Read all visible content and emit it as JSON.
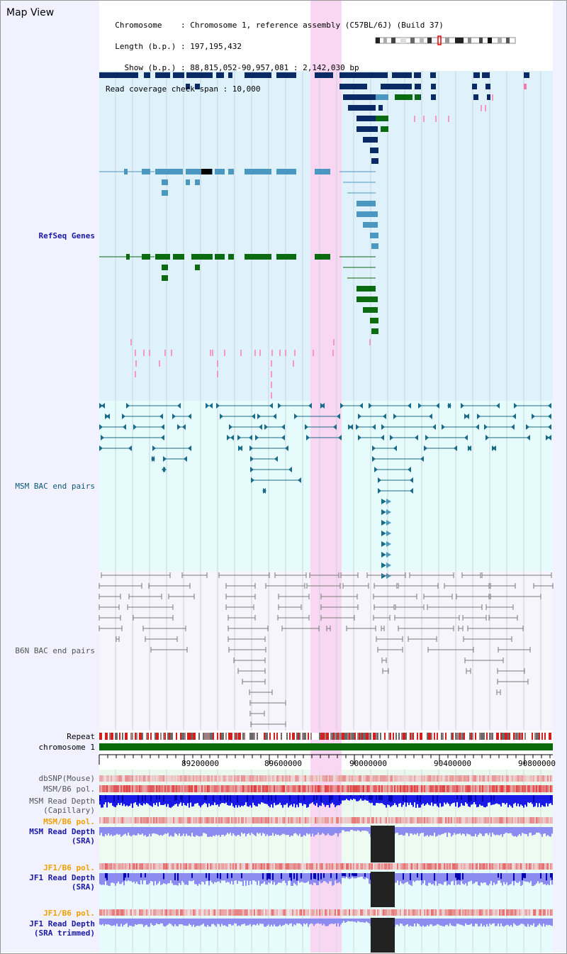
{
  "header": {
    "title": "Map View",
    "info_lines": [
      "  Chromosome    : Chromosome 1, reference assembly (C57BL/6J) (Build 37)",
      "  Length (b.p.) : 197,195,432",
      "    Show (b.p.) : 88,815,052-90,957,081 : 2,142,030 bp",
      "Read coverage check span : 10,000"
    ]
  },
  "tracks": {
    "refseq": "RefSeq Genes",
    "msm_bac": "MSM BAC end pairs",
    "b6n_bac": "B6N BAC end pairs",
    "repeat": "Repeat",
    "chromosome": "chromosome 1",
    "dbsnp": "dbSNP(Mouse)",
    "msm_b6_pol": "MSM/B6 pol.",
    "msm_depth_cap": "MSM Read Depth\n(Capillary)",
    "msm_b6_pol_2": "MSM/B6 pol.",
    "msm_depth_sra": "MSM Read Depth\n(SRA)",
    "jf1_b6_pol": "JF1/B6 pol.",
    "jf1_depth_sra": "JF1 Read Depth\n(SRA)",
    "jf1_b6_pol_2": "JF1/B6 pol.",
    "jf1_depth_sra_trim": "JF1 Read Depth\n(SRA trimmed)"
  },
  "scale": {
    "labels": [
      "89200000",
      "89600000",
      "90000000",
      "90400000",
      "90800000"
    ]
  },
  "colors": {
    "refseq_bg": "#dff2fb",
    "msm_bg": "#e6fbfb",
    "b6n_bg": "#f5f5fb",
    "highlight": "#f9d6f1",
    "gene_navy": "#0a2a66",
    "gene_light": "#4a97c0",
    "gene_green": "#0b6b10",
    "msm_pair": "#1a6a8a",
    "b6n_pair": "#7a7a7a",
    "chromosome": "#0a6a0a",
    "depth_blue": "#1a1ae6",
    "depth_lilac": "#8c8cf0"
  }
}
